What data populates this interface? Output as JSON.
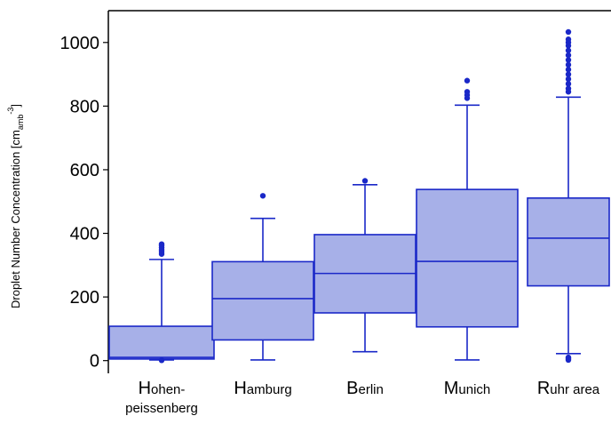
{
  "chart_data": {
    "type": "box",
    "title": "",
    "xlabel": "",
    "ylabel": {
      "main": "Droplet Number Concentration [cm",
      "sub": "amb",
      "sup": "-3",
      "close": "]"
    },
    "ylim": [
      -40,
      1100
    ],
    "yticks": [
      0,
      200,
      400,
      600,
      800,
      1000
    ],
    "grid": false,
    "colors": {
      "box_fill": "#a7b0e8",
      "stroke": "#1a28c8"
    },
    "categories": [
      {
        "label_initial": "H",
        "label_rest": "ohen-",
        "label_line2": "peissenberg"
      },
      {
        "label_initial": "H",
        "label_rest": "amburg",
        "label_line2": ""
      },
      {
        "label_initial": "B",
        "label_rest": "erlin",
        "label_line2": ""
      },
      {
        "label_initial": "M",
        "label_rest": "unich",
        "label_line2": ""
      },
      {
        "label_initial": "R",
        "label_rest": "uhr area",
        "label_line2": ""
      }
    ],
    "boxes": [
      {
        "whisker_low": 2,
        "q1": 5,
        "median": 10,
        "q3": 108,
        "whisker_high": 318,
        "outliers": [
          335,
          342,
          348,
          355,
          362,
          366
        ],
        "low_outliers": [
          1
        ]
      },
      {
        "whisker_low": 2,
        "q1": 65,
        "median": 195,
        "q3": 311,
        "whisker_high": 447,
        "outliers": [
          518
        ],
        "low_outliers": []
      },
      {
        "whisker_low": 28,
        "q1": 150,
        "median": 274,
        "q3": 396,
        "whisker_high": 553,
        "outliers": [
          565
        ],
        "low_outliers": []
      },
      {
        "whisker_low": 2,
        "q1": 106,
        "median": 312,
        "q3": 538,
        "whisker_high": 803,
        "outliers": [
          825,
          835,
          845,
          880
        ],
        "low_outliers": []
      },
      {
        "whisker_low": 22,
        "q1": 235,
        "median": 385,
        "q3": 511,
        "whisker_high": 828,
        "outliers": [
          845,
          855,
          870,
          885,
          900,
          915,
          930,
          945,
          960,
          975,
          990,
          1000,
          1010,
          1033
        ],
        "low_outliers": [
          2,
          6,
          10
        ]
      }
    ]
  }
}
